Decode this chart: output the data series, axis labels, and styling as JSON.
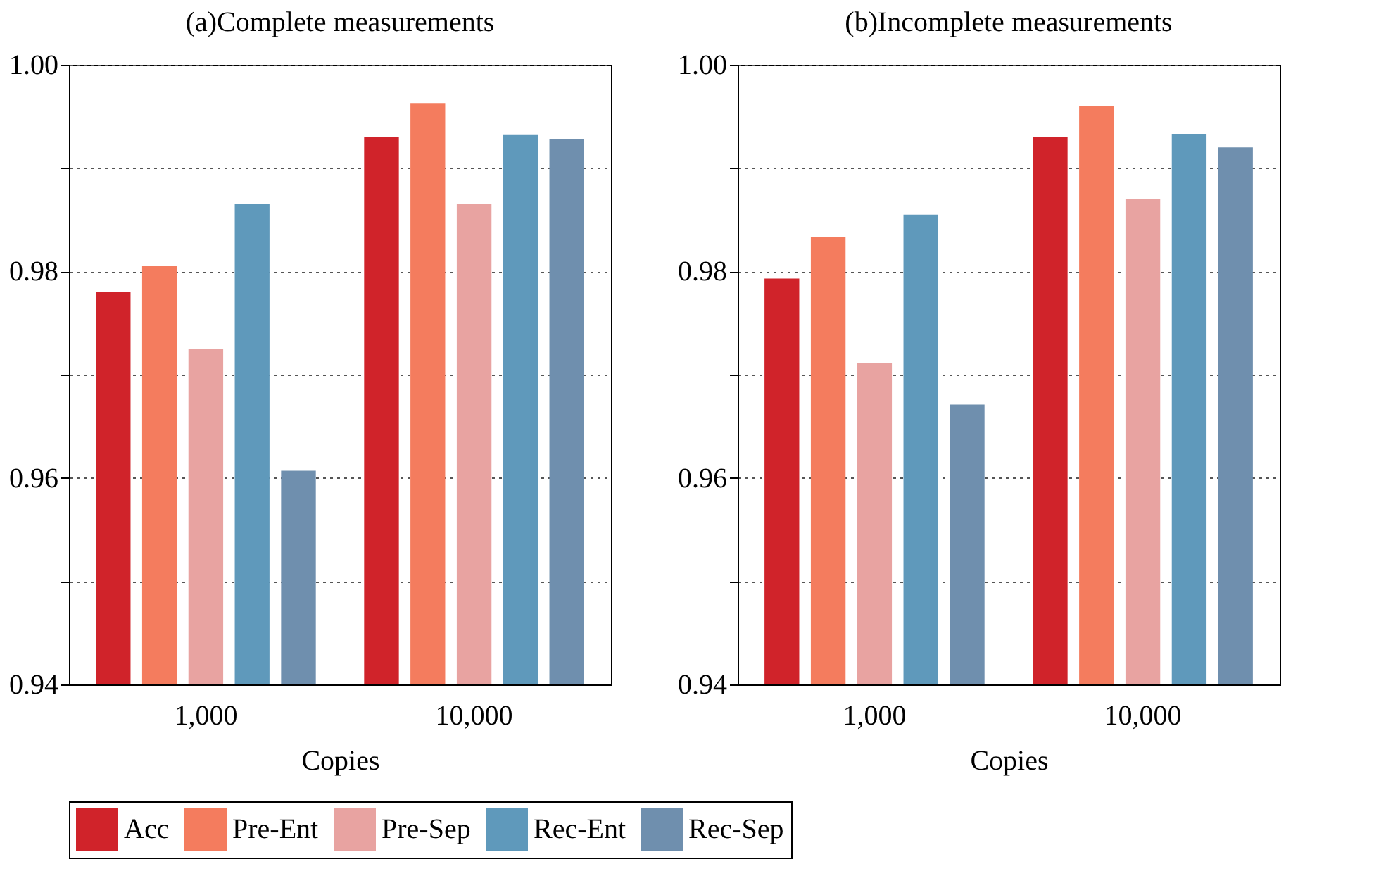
{
  "chart_data": [
    {
      "type": "bar",
      "title": "(a)Complete measurements",
      "xlabel": "Copies",
      "categories": [
        "1,000",
        "10,000"
      ],
      "ylim": [
        0.94,
        1.0
      ],
      "yticks": [
        0.94,
        {
          "value": 0.95,
          "label": null
        },
        0.96,
        {
          "value": 0.97,
          "label": null
        },
        0.98,
        {
          "value": 0.99,
          "label": null
        },
        {
          "value": 1.0,
          "label": "1.00"
        }
      ],
      "grid": "y",
      "legend": "bottom",
      "series": [
        {
          "name": "Acc",
          "color": "#d0232a",
          "values": [
            0.978,
            0.993
          ]
        },
        {
          "name": "Pre-Ent",
          "color": "#f47c5e",
          "values": [
            0.9805,
            0.9963
          ]
        },
        {
          "name": "Pre-Sep",
          "color": "#e8a3a1",
          "values": [
            0.9725,
            0.9865
          ]
        },
        {
          "name": "Rec-Ent",
          "color": "#5f99bb",
          "values": [
            0.9865,
            0.9932
          ]
        },
        {
          "name": "Rec-Sep",
          "color": "#6f8fae",
          "values": [
            0.9607,
            0.9928
          ]
        }
      ]
    },
    {
      "type": "bar",
      "title": "(b)Incomplete measurements",
      "xlabel": "Copies",
      "categories": [
        "1,000",
        "10,000"
      ],
      "ylim": [
        0.94,
        1.0
      ],
      "yticks": [
        0.94,
        {
          "value": 0.95,
          "label": null
        },
        0.96,
        {
          "value": 0.97,
          "label": null
        },
        0.98,
        {
          "value": 0.99,
          "label": null
        },
        {
          "value": 1.0,
          "label": "1.00"
        }
      ],
      "grid": "y",
      "legend": "bottom",
      "series": [
        {
          "name": "Acc",
          "color": "#d0232a",
          "values": [
            0.9793,
            0.993
          ]
        },
        {
          "name": "Pre-Ent",
          "color": "#f47c5e",
          "values": [
            0.9833,
            0.996
          ]
        },
        {
          "name": "Pre-Sep",
          "color": "#e8a3a1",
          "values": [
            0.9711,
            0.987
          ]
        },
        {
          "name": "Rec-Ent",
          "color": "#5f99bb",
          "values": [
            0.9855,
            0.9933
          ]
        },
        {
          "name": "Rec-Sep",
          "color": "#6f8fae",
          "values": [
            0.9671,
            0.992
          ]
        }
      ]
    }
  ]
}
